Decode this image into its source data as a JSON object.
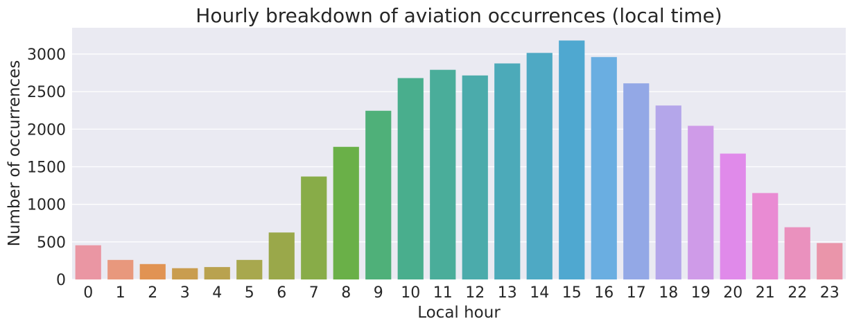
{
  "chart_data": {
    "type": "bar",
    "title": "Hourly breakdown of aviation occurrences (local time)",
    "xlabel": "Local hour",
    "ylabel": "Number of occurrences",
    "categories": [
      "0",
      "1",
      "2",
      "3",
      "4",
      "5",
      "6",
      "7",
      "8",
      "9",
      "10",
      "11",
      "12",
      "13",
      "14",
      "15",
      "16",
      "17",
      "18",
      "19",
      "20",
      "21",
      "22",
      "23"
    ],
    "values": [
      455,
      260,
      205,
      150,
      165,
      260,
      625,
      1370,
      1765,
      2245,
      2680,
      2790,
      2715,
      2875,
      3015,
      3180,
      2960,
      2610,
      2315,
      2045,
      1675,
      1150,
      695,
      485
    ],
    "ylim": [
      0,
      3350
    ],
    "yticks": [
      0,
      500,
      1000,
      1500,
      2000,
      2500,
      3000
    ],
    "grid": true,
    "colors": [
      "#ea96a3",
      "#e8987d",
      "#e19353",
      "#c99d4f",
      "#b9a24f",
      "#a8a84e",
      "#9aa84a",
      "#88ac48",
      "#6ab048",
      "#4fb079",
      "#49ae8d",
      "#4aad9a",
      "#4babab",
      "#4caab9",
      "#4ea9c4",
      "#4fa8d0",
      "#6aaee1",
      "#93a8e6",
      "#b4a6ea",
      "#cf9be8",
      "#e08aea",
      "#e98bd3",
      "#ea91be",
      "#ea95aa"
    ],
    "background": "#eaeaf2",
    "gridcolor": "#ffffff"
  }
}
